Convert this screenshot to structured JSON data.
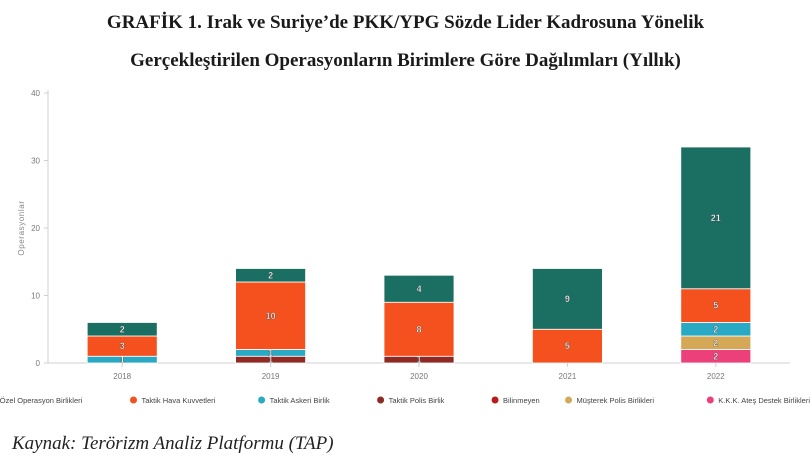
{
  "title_line1": "GRAFİK 1. Irak ve Suriye’de PKK/YPG Sözde Lider Kadrosuna Yönelik",
  "title_line2": "Gerçekleştirilen Operasyonların Birimlere Göre Dağılımları (Yıllık)",
  "source": "Kaynak: Terörizm Analiz Platformu (TAP)",
  "chart_data": {
    "type": "bar",
    "stacked": true,
    "categories": [
      "2018",
      "2019",
      "2020",
      "2021",
      "2022"
    ],
    "ylabel": "Operasyonlar",
    "xlabel": "",
    "ylim": [
      0,
      40
    ],
    "yticks": [
      0,
      10,
      20,
      30,
      40
    ],
    "grid": false,
    "legend_position": "bottom",
    "series": [
      {
        "name": "Bilinmeyen",
        "color": "#b71c1c",
        "values": [
          0,
          0,
          0,
          0,
          0
        ]
      },
      {
        "name": "K.K.K. Ateş Destek Birlikleri",
        "color": "#ec407a",
        "values": [
          0,
          0,
          0,
          0,
          2
        ]
      },
      {
        "name": "Müşterek Polis Birlikleri",
        "color": "#d4a857",
        "values": [
          0,
          0,
          0,
          0,
          2
        ]
      },
      {
        "name": "Taktik Polis Birlik",
        "color": "#8e2a23",
        "values": [
          0,
          1,
          1,
          0,
          0
        ]
      },
      {
        "name": "Taktik Askeri Birlik",
        "color": "#29a9c4",
        "values": [
          1,
          1,
          0,
          0,
          2
        ]
      },
      {
        "name": "Taktik Hava Kuvvetleri",
        "color": "#f4511e",
        "values": [
          3,
          10,
          8,
          5,
          5
        ]
      },
      {
        "name": "Özel Operasyon Birlikleri",
        "color": "#1b6e62",
        "values": [
          2,
          2,
          4,
          9,
          21
        ]
      }
    ],
    "legend_order": [
      "Özel Operasyon Birlikleri",
      "Taktik Hava Kuvvetleri",
      "Taktik Askeri Birlik",
      "Taktik Polis Birlik",
      "Bilinmeyen",
      "Müşterek Polis Birlikleri",
      "K.K.K. Ateş Destek Birlikleri"
    ]
  }
}
